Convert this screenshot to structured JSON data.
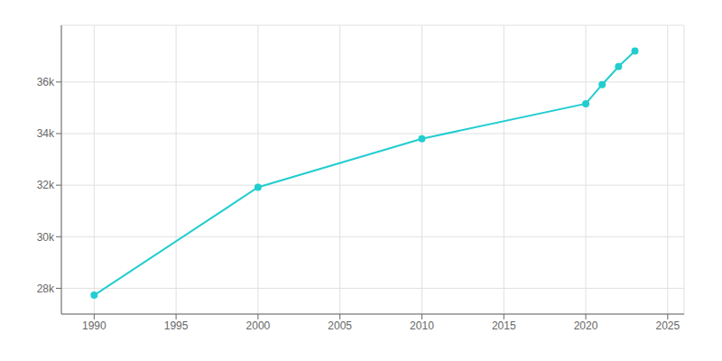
{
  "chart_data": {
    "type": "line",
    "x": [
      1990,
      2000,
      2010,
      2020,
      2021,
      2022,
      2023
    ],
    "values": [
      27731,
      31917,
      33800,
      35158,
      35900,
      36600,
      37200
    ],
    "color": "#22cdd0",
    "marker": "circle",
    "xlim": [
      1988,
      2026
    ],
    "ylim": [
      27000,
      38200
    ],
    "xticks": [
      1990,
      1995,
      2000,
      2005,
      2010,
      2015,
      2020,
      2025
    ],
    "yticks": [
      {
        "value": 28000,
        "label": "28k"
      },
      {
        "value": 30000,
        "label": "30k"
      },
      {
        "value": 32000,
        "label": "32k"
      },
      {
        "value": 34000,
        "label": "34k"
      },
      {
        "value": 36000,
        "label": "36k"
      }
    ],
    "grid": true
  }
}
